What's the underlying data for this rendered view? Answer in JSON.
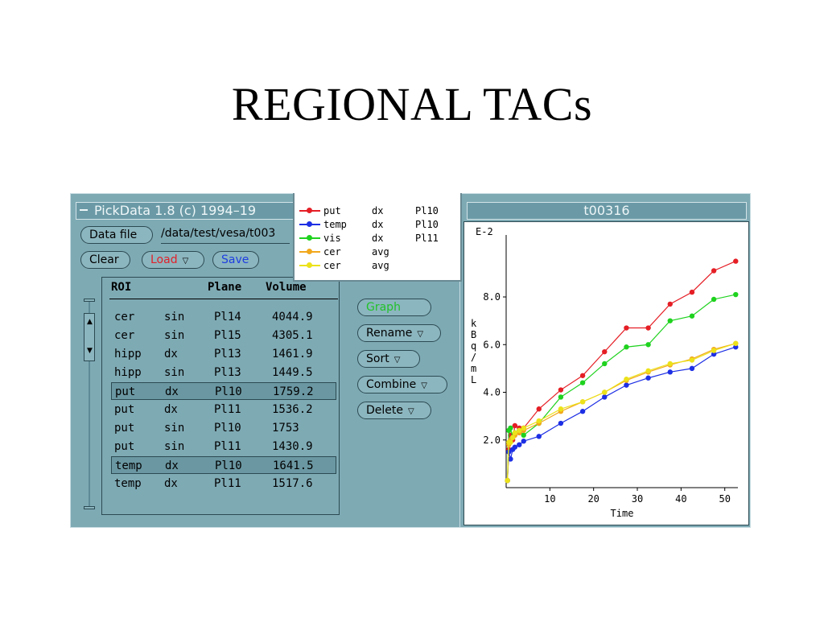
{
  "slide_title": "REGIONAL TACs",
  "left_window": {
    "title": "PickData 1.8 (c) 1994–19",
    "data_file_button": "Data file",
    "path": "/data/test/vesa/t003",
    "clear_button": "Clear",
    "load_button": "Load",
    "save_button": "Save",
    "columns": {
      "roi": "ROI",
      "plane": "Plane",
      "volume": "Volume"
    },
    "rows": [
      {
        "roi": "cer",
        "side": "sin",
        "plane": "Pl14",
        "volume": "4044.9",
        "selected": false
      },
      {
        "roi": "cer",
        "side": "sin",
        "plane": "Pl15",
        "volume": "4305.1",
        "selected": false
      },
      {
        "roi": "hipp",
        "side": "dx",
        "plane": "Pl13",
        "volume": "1461.9",
        "selected": false
      },
      {
        "roi": "hipp",
        "side": "sin",
        "plane": "Pl13",
        "volume": "1449.5",
        "selected": false
      },
      {
        "roi": "put",
        "side": "dx",
        "plane": "Pl10",
        "volume": "1759.2",
        "selected": true
      },
      {
        "roi": "put",
        "side": "dx",
        "plane": "Pl11",
        "volume": "1536.2",
        "selected": false
      },
      {
        "roi": "put",
        "side": "sin",
        "plane": "Pl10",
        "volume": "1753",
        "selected": false
      },
      {
        "roi": "put",
        "side": "sin",
        "plane": "Pl11",
        "volume": "1430.9",
        "selected": false
      },
      {
        "roi": "temp",
        "side": "dx",
        "plane": "Pl10",
        "volume": "1641.5",
        "selected": true
      },
      {
        "roi": "temp",
        "side": "dx",
        "plane": "Pl11",
        "volume": "1517.6",
        "selected": false
      }
    ],
    "actions": {
      "graph": "Graph",
      "rename": "Rename",
      "sort": "Sort",
      "combine": "Combine",
      "delete": "Delete"
    },
    "colors": {
      "load_text": "#e0202a",
      "save_text": "#1f3fe0",
      "graph_text": "#22c22a"
    }
  },
  "legend": [
    {
      "name": "put",
      "side": "dx",
      "plane": "Pl10",
      "color": "#e51e25"
    },
    {
      "name": "temp",
      "side": "dx",
      "plane": "Pl10",
      "color": "#1d2fe4"
    },
    {
      "name": "vis",
      "side": "dx",
      "plane": "Pl11",
      "color": "#1ed21e"
    },
    {
      "name": "cer",
      "side": "avg",
      "plane": "",
      "color": "#f2a81c"
    },
    {
      "name": "cer",
      "side": "avg",
      "plane": "",
      "color": "#ece21a"
    }
  ],
  "right_window": {
    "title": "t00316"
  },
  "chart_data": {
    "type": "line",
    "title": "",
    "xlabel": "Time",
    "ylabel": "kBq/mL",
    "y_exponent_label": "E-2",
    "xlim": [
      0,
      53
    ],
    "ylim": [
      0,
      10.6
    ],
    "x_ticks": [
      10,
      20,
      30,
      40,
      50
    ],
    "y_ticks": [
      2.0,
      4.0,
      6.0,
      8.0
    ],
    "series": [
      {
        "name": "put",
        "color": "#e51e25",
        "x": [
          0.3,
          0.6,
          1,
          1.5,
          2,
          3,
          4,
          7.5,
          12.5,
          17.5,
          22.5,
          27.5,
          32.5,
          37.5,
          42.5,
          47.5,
          52.5
        ],
        "y": [
          0.3,
          1.6,
          2.2,
          2.0,
          2.6,
          2.5,
          2.5,
          3.3,
          4.1,
          4.7,
          5.7,
          6.7,
          6.7,
          7.7,
          8.2,
          9.1,
          9.5
        ]
      },
      {
        "name": "temp",
        "color": "#1d2fe4",
        "x": [
          0.3,
          0.6,
          1,
          1.5,
          2,
          3,
          4,
          7.5,
          12.5,
          17.5,
          22.5,
          27.5,
          32.5,
          37.5,
          42.5,
          47.5,
          52.5
        ],
        "y": [
          0.3,
          1.5,
          1.2,
          1.6,
          1.7,
          1.8,
          1.95,
          2.15,
          2.7,
          3.2,
          3.8,
          4.3,
          4.6,
          4.85,
          5.0,
          5.6,
          5.9
        ]
      },
      {
        "name": "vis",
        "color": "#1ed21e",
        "x": [
          0.3,
          0.6,
          1,
          1.5,
          2,
          3,
          4,
          7.5,
          12.5,
          17.5,
          22.5,
          27.5,
          32.5,
          37.5,
          42.5,
          47.5,
          52.5
        ],
        "y": [
          0.3,
          2.4,
          2.5,
          2.1,
          2.3,
          2.4,
          2.2,
          2.7,
          3.8,
          4.4,
          5.2,
          5.9,
          6.0,
          7.0,
          7.2,
          7.9,
          8.1
        ]
      },
      {
        "name": "cer",
        "color": "#f2a81c",
        "x": [
          0.3,
          0.6,
          1,
          1.5,
          2,
          3,
          4,
          7.5,
          12.5,
          17.5,
          22.5,
          27.5,
          32.5,
          37.5,
          42.5,
          47.5,
          52.5
        ],
        "y": [
          0.3,
          1.8,
          2.0,
          2.1,
          2.2,
          2.3,
          2.4,
          2.7,
          3.2,
          3.6,
          4.0,
          4.5,
          4.85,
          5.15,
          5.4,
          5.8,
          6.05
        ]
      },
      {
        "name": "cer",
        "color": "#ece21a",
        "x": [
          0.3,
          0.6,
          1,
          1.5,
          2,
          3,
          4,
          7.5,
          12.5,
          17.5,
          22.5,
          27.5,
          32.5,
          37.5,
          42.5,
          47.5,
          52.5
        ],
        "y": [
          0.3,
          1.9,
          1.9,
          2.1,
          2.3,
          2.4,
          2.5,
          2.8,
          3.3,
          3.6,
          4.0,
          4.55,
          4.9,
          5.2,
          5.35,
          5.75,
          6.05
        ]
      }
    ]
  }
}
